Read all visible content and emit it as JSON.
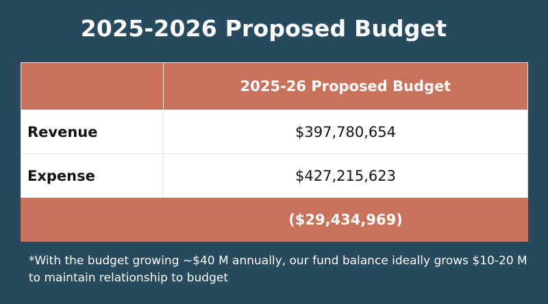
{
  "page": {
    "title": "2025-2026 Proposed Budget",
    "colors": {
      "background": "#284a5c",
      "accent": "#c8725a",
      "table_body": "#ffffff",
      "text_light": "#ffffff",
      "text_dark": "#111111"
    }
  },
  "table": {
    "header": [
      "",
      "2025-26 Proposed Budget"
    ],
    "rows": [
      {
        "label": "Revenue",
        "value": "$397,780,654"
      },
      {
        "label": "Expense",
        "value": "$427,215,623"
      }
    ],
    "total": {
      "label": "",
      "value": "($29,434,969)"
    }
  },
  "footnote": "*With the budget growing ~$40 M annually, our fund balance ideally grows $10-20 M to maintain relationship to budget"
}
